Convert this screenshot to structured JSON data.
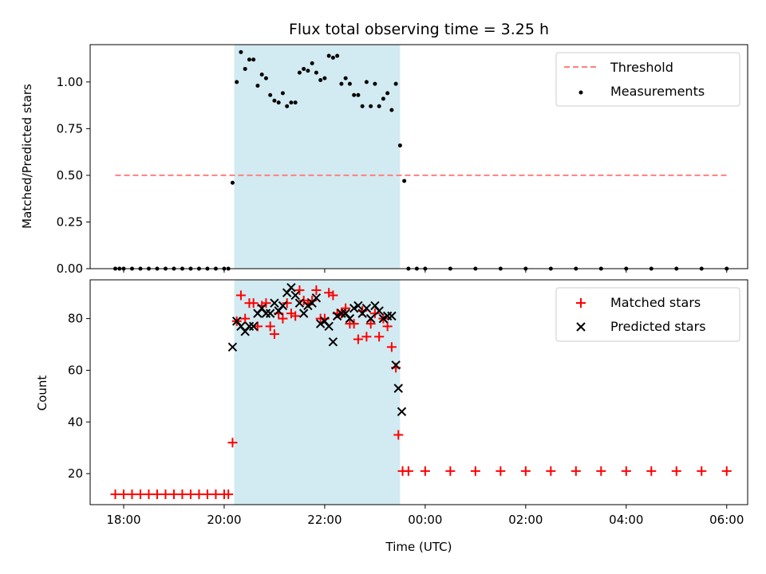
{
  "chart_data": [
    {
      "type": "scatter",
      "title": "Flux total observing time = 3.25 h",
      "ylabel": "Matched/Predicted stars",
      "xlabel": "",
      "xlim": [
        "17:20",
        "06:25"
      ],
      "ylim": [
        0,
        1.2
      ],
      "x_tick_labels": [
        "18:00",
        "20:00",
        "22:00",
        "00:00",
        "02:00",
        "04:00",
        "06:00"
      ],
      "y_ticks": [
        0.0,
        0.25,
        0.5,
        0.75,
        1.0
      ],
      "y_tick_labels": [
        "0.00",
        "0.25",
        "0.50",
        "0.75",
        "1.00"
      ],
      "shaded_region": {
        "x": [
          "20:12",
          "23:30"
        ],
        "color": "#add8e6"
      },
      "legend": {
        "position": "top-right",
        "entries": [
          {
            "label": "Threshold",
            "style": "dashed-line",
            "color": "#ff7f7f"
          },
          {
            "label": "Measurements",
            "style": "dot",
            "color": "#000000"
          }
        ]
      },
      "series": [
        {
          "name": "Threshold",
          "kind": "line",
          "color": "#ff7f7f",
          "x": [
            "17:50",
            "06:00"
          ],
          "values": [
            0.5,
            0.5
          ]
        },
        {
          "name": "Measurements",
          "kind": "scatter",
          "color": "#000000",
          "x": [
            "17:50",
            "17:55",
            "18:00",
            "18:10",
            "18:20",
            "18:30",
            "18:40",
            "18:50",
            "19:00",
            "19:10",
            "19:20",
            "19:30",
            "19:40",
            "19:50",
            "20:00",
            "20:05",
            "20:10",
            "20:15",
            "20:20",
            "20:25",
            "20:30",
            "20:35",
            "20:40",
            "20:45",
            "20:50",
            "20:55",
            "21:00",
            "21:05",
            "21:10",
            "21:15",
            "21:20",
            "21:25",
            "21:30",
            "21:35",
            "21:40",
            "21:45",
            "21:50",
            "21:55",
            "22:00",
            "22:05",
            "22:10",
            "22:15",
            "22:20",
            "22:25",
            "22:30",
            "22:35",
            "22:40",
            "22:45",
            "22:50",
            "22:55",
            "23:00",
            "23:05",
            "23:10",
            "23:15",
            "23:20",
            "23:25",
            "23:30",
            "23:35",
            "23:40",
            "23:50",
            "00:00",
            "00:30",
            "01:00",
            "01:30",
            "02:00",
            "02:30",
            "03:00",
            "03:30",
            "04:00",
            "04:30",
            "05:00",
            "05:30",
            "06:00"
          ],
          "values": [
            0,
            0,
            0,
            0,
            0,
            0,
            0,
            0,
            0,
            0,
            0,
            0,
            0,
            0,
            0,
            0,
            0.46,
            1.0,
            1.16,
            1.07,
            1.12,
            1.12,
            0.98,
            1.04,
            1.02,
            0.93,
            0.9,
            0.89,
            0.94,
            0.87,
            0.89,
            0.89,
            1.05,
            1.07,
            1.06,
            1.1,
            1.05,
            1.01,
            1.02,
            1.14,
            1.13,
            1.14,
            0.99,
            1.02,
            0.99,
            0.93,
            0.93,
            0.87,
            1.0,
            0.87,
            0.99,
            0.87,
            0.91,
            0.94,
            0.85,
            0.99,
            0.66,
            0.47,
            0,
            0,
            0,
            0,
            0,
            0,
            0,
            0,
            0,
            0,
            0,
            0,
            0,
            0,
            0
          ]
        }
      ]
    },
    {
      "type": "scatter",
      "title": "",
      "ylabel": "Count",
      "xlabel": "Time (UTC)",
      "xlim": [
        "17:20",
        "06:25"
      ],
      "ylim": [
        8,
        95
      ],
      "x_tick_labels": [
        "18:00",
        "20:00",
        "22:00",
        "00:00",
        "02:00",
        "04:00",
        "06:00"
      ],
      "y_ticks": [
        20,
        40,
        60,
        80
      ],
      "y_tick_labels": [
        "20",
        "40",
        "60",
        "80"
      ],
      "shaded_region": {
        "x": [
          "20:12",
          "23:30"
        ],
        "color": "#add8e6"
      },
      "legend": {
        "position": "top-right",
        "entries": [
          {
            "label": "Matched stars",
            "style": "plus",
            "color": "#ff0000"
          },
          {
            "label": "Predicted stars",
            "style": "x",
            "color": "#000000"
          }
        ]
      },
      "series": [
        {
          "name": "Matched stars",
          "kind": "plus",
          "color": "#ff0000",
          "x": [
            "17:50",
            "18:00",
            "18:10",
            "18:20",
            "18:30",
            "18:40",
            "18:50",
            "19:00",
            "19:10",
            "19:20",
            "19:30",
            "19:40",
            "19:50",
            "20:00",
            "20:05",
            "20:10",
            "20:15",
            "20:20",
            "20:25",
            "20:30",
            "20:35",
            "20:40",
            "20:45",
            "20:50",
            "20:55",
            "21:00",
            "21:05",
            "21:10",
            "21:15",
            "21:20",
            "21:25",
            "21:30",
            "21:35",
            "21:40",
            "21:45",
            "21:50",
            "21:55",
            "22:00",
            "22:05",
            "22:10",
            "22:15",
            "22:20",
            "22:25",
            "22:30",
            "22:35",
            "22:40",
            "22:45",
            "22:50",
            "22:55",
            "23:00",
            "23:05",
            "23:10",
            "23:15",
            "23:20",
            "23:25",
            "23:28",
            "23:33",
            "23:40",
            "00:00",
            "00:30",
            "01:00",
            "01:30",
            "02:00",
            "02:30",
            "03:00",
            "03:30",
            "04:00",
            "04:30",
            "05:00",
            "05:30",
            "06:00"
          ],
          "values": [
            12,
            12,
            12,
            12,
            12,
            12,
            12,
            12,
            12,
            12,
            12,
            12,
            12,
            12,
            12,
            32,
            79,
            89,
            80,
            86,
            86,
            77,
            85,
            86,
            77,
            74,
            82,
            80,
            86,
            82,
            81,
            91,
            87,
            86,
            87,
            91,
            80,
            80,
            90,
            89,
            82,
            82,
            84,
            78,
            78,
            72,
            83,
            73,
            78,
            82,
            73,
            80,
            77,
            69,
            61,
            35,
            21,
            21,
            21,
            21,
            21,
            21,
            21,
            21,
            21,
            21,
            21,
            21,
            21,
            21,
            21
          ]
        },
        {
          "name": "Predicted stars",
          "kind": "x",
          "color": "#000000",
          "x": [
            "20:10",
            "20:15",
            "20:20",
            "20:25",
            "20:30",
            "20:35",
            "20:40",
            "20:45",
            "20:50",
            "20:55",
            "21:00",
            "21:05",
            "21:10",
            "21:15",
            "21:20",
            "21:25",
            "21:30",
            "21:35",
            "21:40",
            "21:45",
            "21:50",
            "21:55",
            "22:00",
            "22:05",
            "22:10",
            "22:15",
            "22:20",
            "22:25",
            "22:30",
            "22:35",
            "22:40",
            "22:45",
            "22:50",
            "22:55",
            "23:00",
            "23:05",
            "23:10",
            "23:15",
            "23:20",
            "23:25",
            "23:28",
            "23:32"
          ],
          "values": [
            69,
            79,
            77,
            75,
            77,
            77,
            82,
            84,
            82,
            82,
            86,
            83,
            85,
            90,
            92,
            89,
            86,
            82,
            85,
            86,
            88,
            78,
            79,
            77,
            71,
            81,
            82,
            82,
            80,
            84,
            85,
            82,
            84,
            80,
            85,
            83,
            80,
            81,
            81,
            62,
            53,
            44
          ]
        }
      ]
    }
  ]
}
